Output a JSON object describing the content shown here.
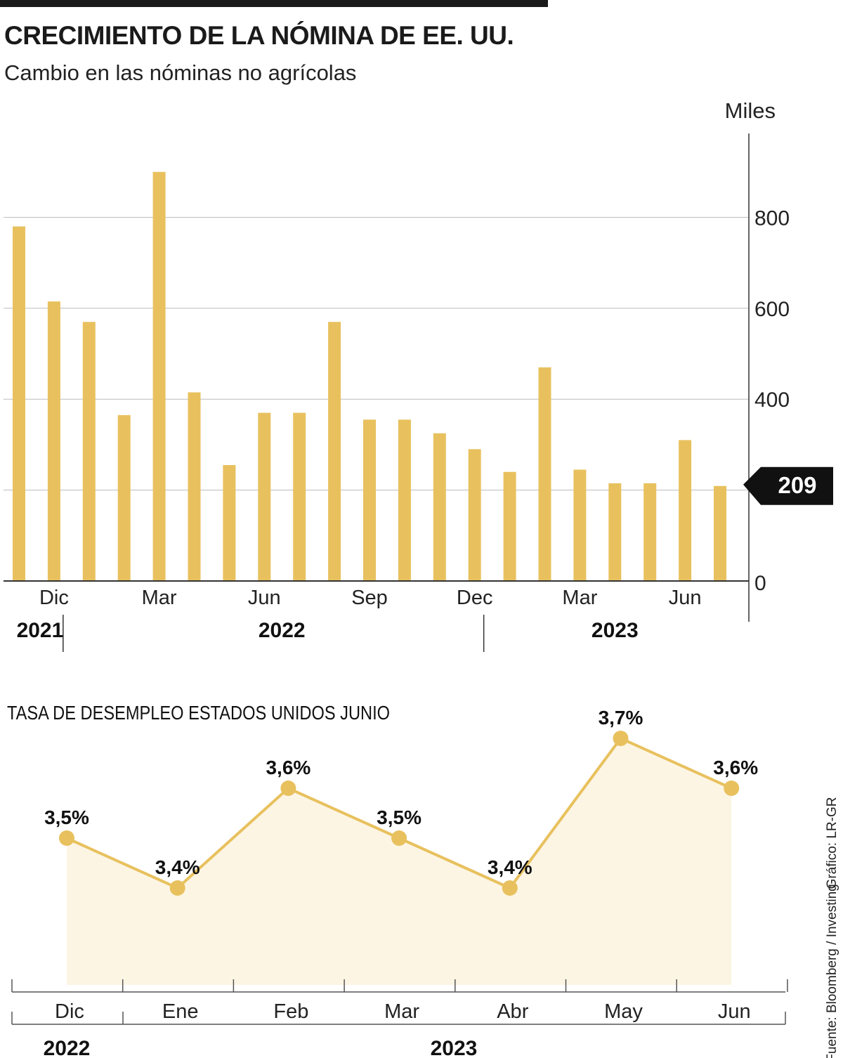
{
  "header": {
    "title": "CRECIMIENTO DE LA NÓMINA DE EE. UU.",
    "subtitle": "Cambio en las nóminas no agrícolas"
  },
  "colors": {
    "bar": "#E8C15E",
    "line": "#E8C15E",
    "area": "#FDF5E4",
    "grid": "#bbbbbb",
    "text": "#1a1a1a",
    "badge": "#111111"
  },
  "chart_data": [
    {
      "type": "bar",
      "title": "CRECIMIENTO DE LA NÓMINA DE EE. UU.",
      "subtitle": "Cambio en las nóminas no agrícolas",
      "unit_label": "Miles",
      "values": [
        780,
        615,
        570,
        365,
        900,
        415,
        255,
        370,
        370,
        570,
        355,
        355,
        325,
        290,
        240,
        470,
        245,
        215,
        215,
        310,
        209
      ],
      "ylim": [
        0,
        1000
      ],
      "yticks": [
        0,
        400,
        600,
        800
      ],
      "gridlines": [
        200,
        400,
        600,
        800
      ],
      "xtick_labels": [
        {
          "index": 1,
          "label": "Dic"
        },
        {
          "index": 4,
          "label": "Mar"
        },
        {
          "index": 7,
          "label": "Jun"
        },
        {
          "index": 10,
          "label": "Sep"
        },
        {
          "index": 13,
          "label": "Dec"
        },
        {
          "index": 16,
          "label": "Mar"
        },
        {
          "index": 19,
          "label": "Jun"
        }
      ],
      "years": [
        {
          "label": "2021",
          "from": 0,
          "to": 1
        },
        {
          "label": "2022",
          "from": 2,
          "to": 13
        },
        {
          "label": "2023",
          "from": 14,
          "to": 20
        }
      ],
      "highlight": {
        "index": 20,
        "label": "209",
        "value": 209
      }
    },
    {
      "type": "line",
      "title": "TASA DE DESEMPLEO ESTADOS UNIDOS JUNIO",
      "categories": [
        "Dic",
        "Ene",
        "Feb",
        "Mar",
        "Abr",
        "May",
        "Jun"
      ],
      "values": [
        3.5,
        3.4,
        3.6,
        3.5,
        3.4,
        3.7,
        3.6
      ],
      "labels": [
        "3,5%",
        "3,4%",
        "3,6%",
        "3,5%",
        "3,4%",
        "3,7%",
        "3,6%"
      ],
      "years": [
        {
          "label": "2022",
          "from": 0,
          "to": 0
        },
        {
          "label": "2023",
          "from": 1,
          "to": 6
        }
      ]
    }
  ],
  "source": {
    "credit": "Gráfico: LR-GR",
    "source": "Fuente: Bloomberg / Investing"
  }
}
